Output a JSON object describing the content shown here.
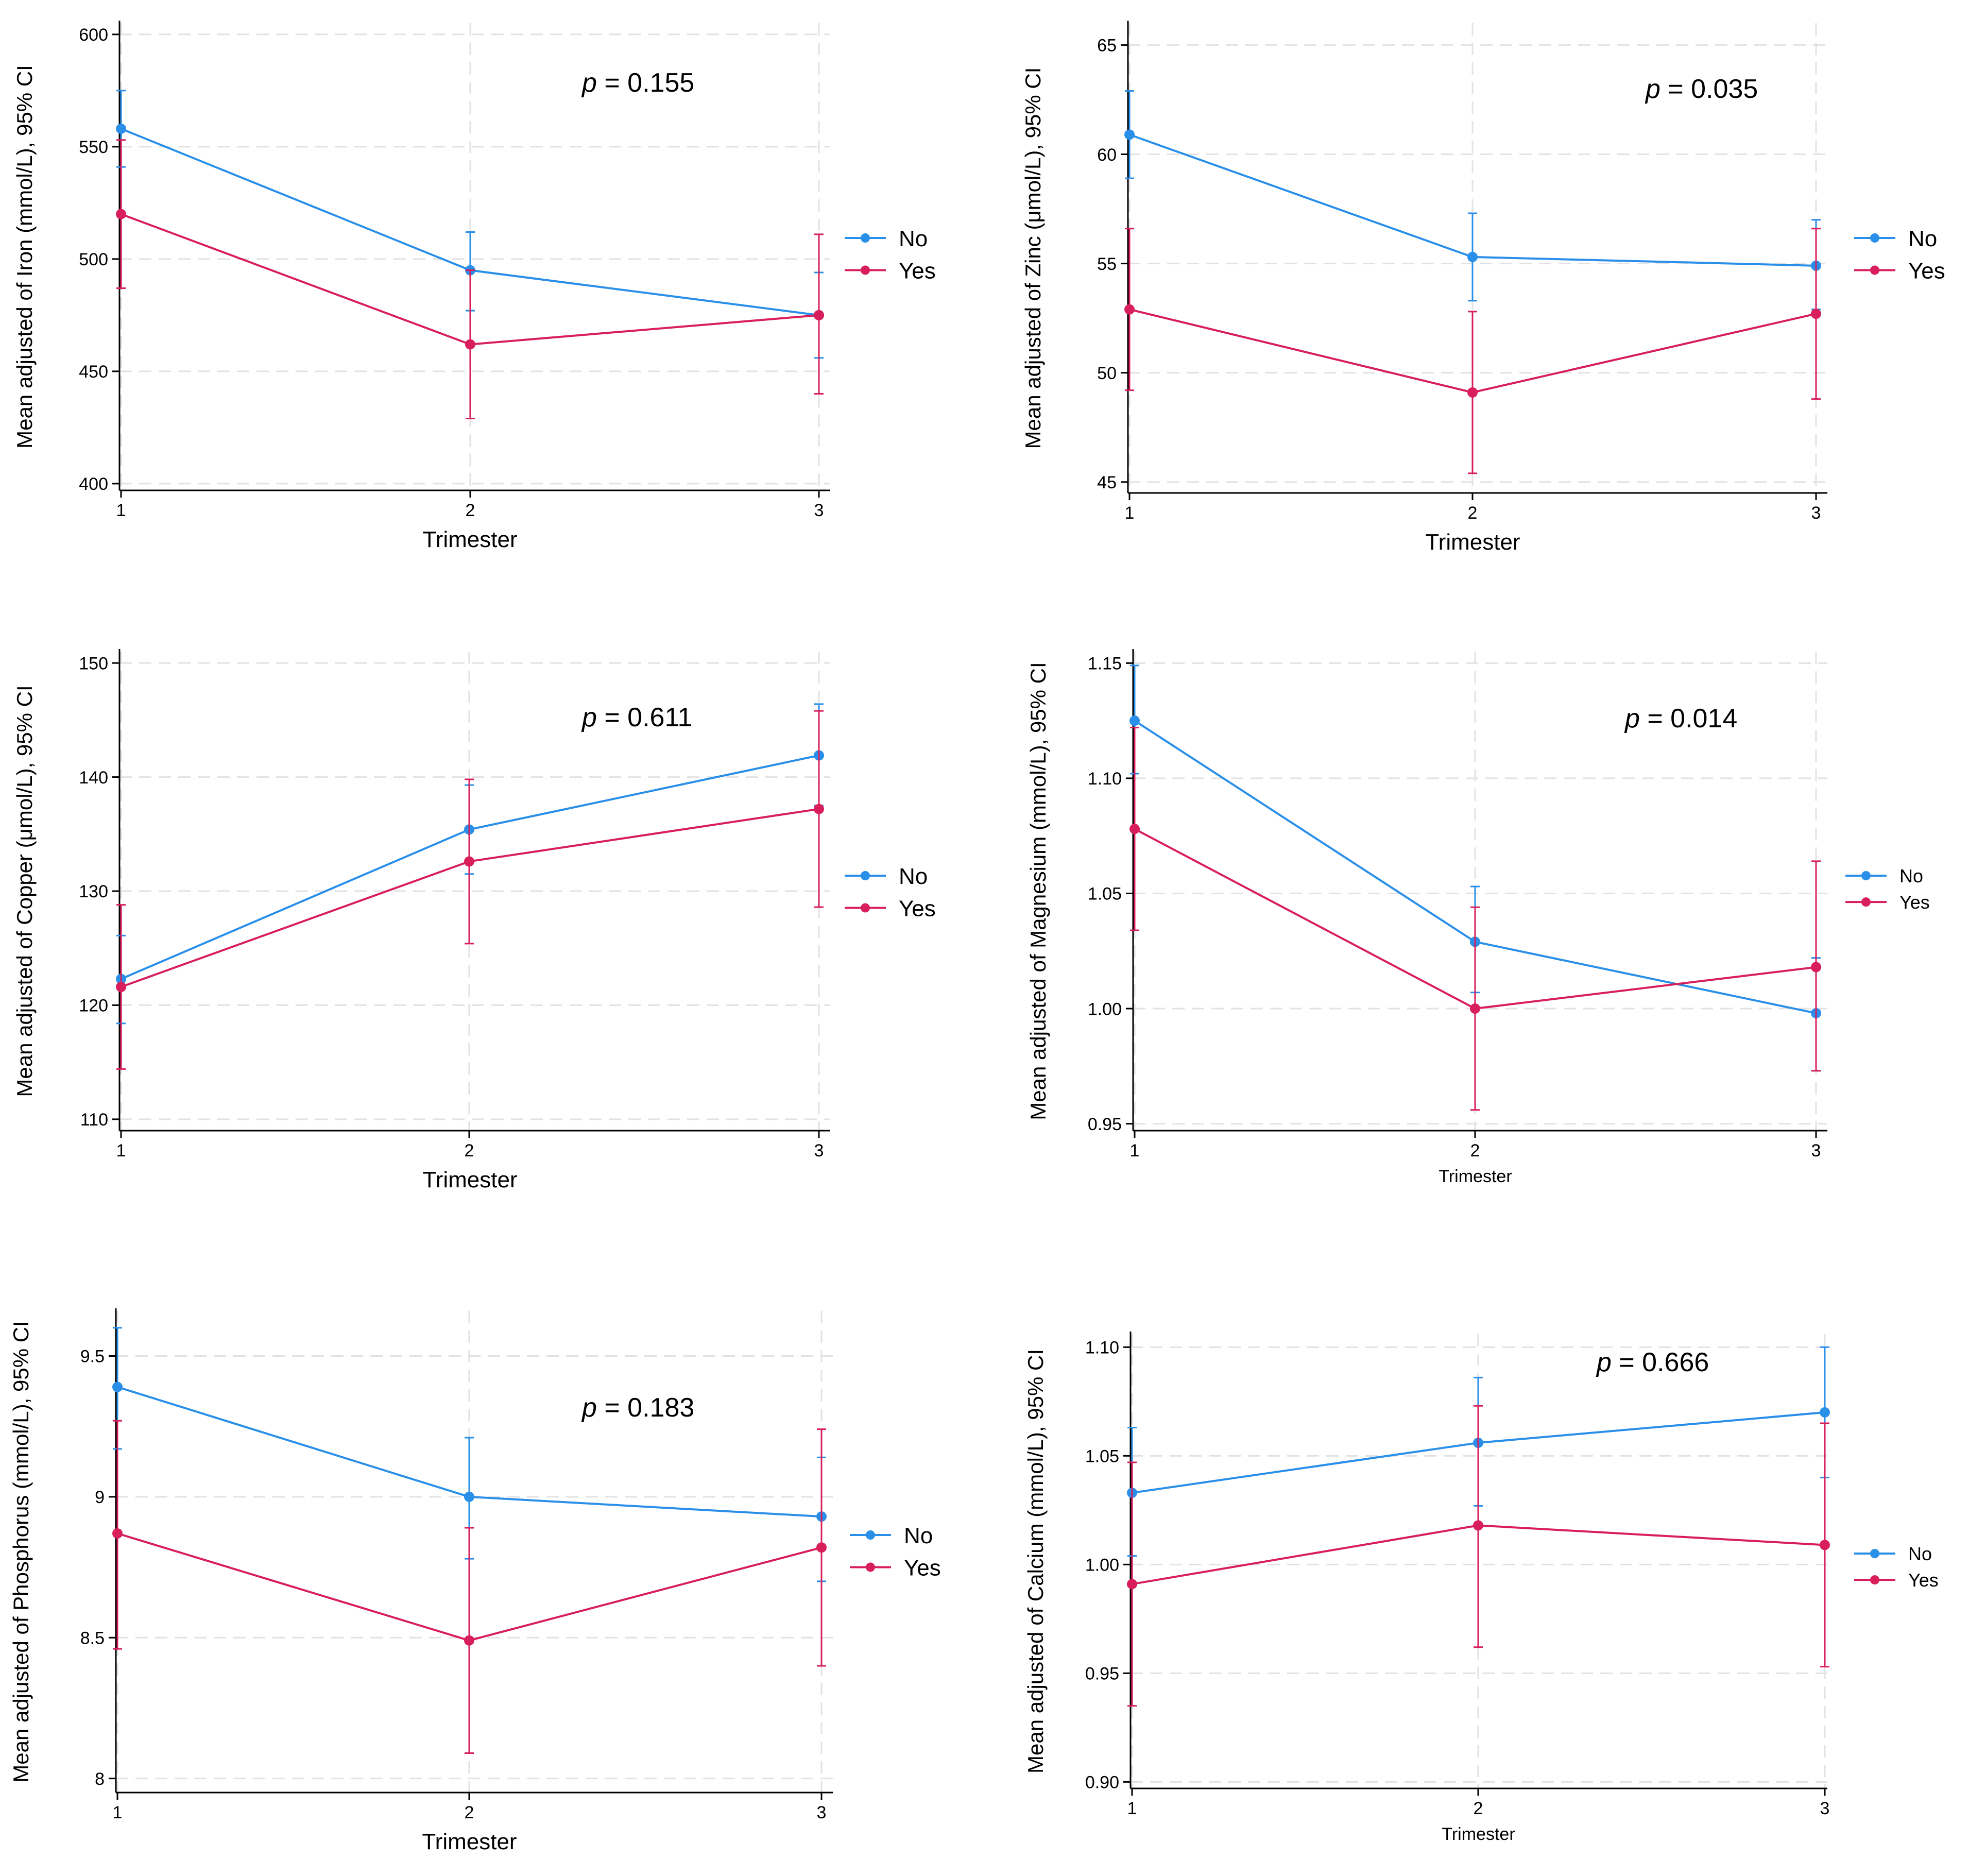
{
  "colors": {
    "no": "#2a8fe8",
    "yes": "#d81e5b",
    "grid": "#e2e2e2",
    "axis": "#000000"
  },
  "legend": {
    "no_label": "No",
    "yes_label": "Yes"
  },
  "chart_data": [
    {
      "id": "iron",
      "type": "line",
      "ylabel": "Mean adjusted of Iron (mmol/L), 95% CI",
      "xlabel": "Trimester",
      "ptext": {
        "p": "p",
        "rest": " = 0.155"
      },
      "x": [
        1,
        2,
        3
      ],
      "xticks": [
        "1",
        "2",
        "3"
      ],
      "ylim": [
        397,
        605
      ],
      "yticks": [
        400,
        450,
        500,
        550,
        600
      ],
      "ytick_labels": [
        "400",
        "450",
        "500",
        "550",
        "600"
      ],
      "series": [
        {
          "name": "No",
          "values": [
            558,
            495,
            475
          ],
          "lower": [
            541,
            477,
            456
          ],
          "upper": [
            575,
            512,
            494
          ]
        },
        {
          "name": "Yes",
          "values": [
            520,
            462,
            475
          ],
          "lower": [
            487,
            429,
            440
          ],
          "upper": [
            553,
            495,
            511
          ]
        }
      ]
    },
    {
      "id": "zinc",
      "type": "line",
      "ylabel": "Mean adjusted of Zinc (μmol/L), 95% CI",
      "xlabel": "Trimester",
      "ptext": {
        "p": "p",
        "rest": " = 0.035"
      },
      "x": [
        1,
        2,
        3
      ],
      "xticks": [
        "1",
        "2",
        "3"
      ],
      "ylim": [
        44.5,
        66
      ],
      "yticks": [
        45,
        50,
        55,
        60,
        65
      ],
      "ytick_labels": [
        "45",
        "50",
        "55",
        "60",
        "65"
      ],
      "series": [
        {
          "name": "No",
          "values": [
            60.9,
            55.3,
            54.9
          ],
          "lower": [
            58.9,
            53.3,
            52.9
          ],
          "upper": [
            62.9,
            57.3,
            57.0
          ]
        },
        {
          "name": "Yes",
          "values": [
            52.9,
            49.1,
            52.7
          ],
          "lower": [
            49.2,
            45.4,
            48.8
          ],
          "upper": [
            56.6,
            52.8,
            56.6
          ]
        }
      ]
    },
    {
      "id": "copper",
      "type": "line",
      "ylabel": "Mean adjusted of Copper (μmol/L), 95% CI",
      "xlabel": "Trimester",
      "ptext": {
        "p": "p",
        "rest": " = 0.611"
      },
      "x": [
        1,
        2,
        3
      ],
      "xticks": [
        "1",
        "2",
        "3"
      ],
      "ylim": [
        109,
        151
      ],
      "yticks": [
        110,
        120,
        130,
        140,
        150
      ],
      "ytick_labels": [
        "110",
        "120",
        "130",
        "140",
        "150"
      ],
      "series": [
        {
          "name": "No",
          "values": [
            122.3,
            135.4,
            141.9
          ],
          "lower": [
            118.4,
            131.5,
            137.5
          ],
          "upper": [
            126.1,
            139.3,
            146.4
          ]
        },
        {
          "name": "Yes",
          "values": [
            121.6,
            132.6,
            137.2
          ],
          "lower": [
            114.4,
            125.4,
            128.6
          ],
          "upper": [
            128.8,
            139.8,
            145.8
          ]
        }
      ]
    },
    {
      "id": "magnesium",
      "type": "line",
      "ylabel": "Mean adjusted of Magnesium (mmol/L), 95% CI",
      "xlabel": "Trimester",
      "ptext": {
        "p": "p",
        "rest": " = 0.014"
      },
      "x": [
        1,
        2,
        3
      ],
      "xticks": [
        "1",
        "2",
        "3"
      ],
      "ylim": [
        0.947,
        1.155
      ],
      "yticks": [
        0.95,
        1.0,
        1.05,
        1.1,
        1.15
      ],
      "ytick_labels": [
        "0.95",
        "1.00",
        "1.05",
        "1.10",
        "1.15"
      ],
      "series": [
        {
          "name": "No",
          "values": [
            1.125,
            1.029,
            0.998
          ],
          "lower": [
            1.102,
            1.007,
            0.973
          ],
          "upper": [
            1.149,
            1.053,
            1.022
          ]
        },
        {
          "name": "Yes",
          "values": [
            1.078,
            1.0,
            1.018
          ],
          "lower": [
            1.034,
            0.956,
            0.973
          ],
          "upper": [
            1.122,
            1.044,
            1.064
          ]
        }
      ]
    },
    {
      "id": "phosphorus",
      "type": "line",
      "ylabel": "Mean adjusted of Phosphorus (mmol/L), 95% CI",
      "xlabel": "Trimester",
      "ptext": {
        "p": "p",
        "rest": " = 0.183"
      },
      "x": [
        1,
        2,
        3
      ],
      "xticks": [
        "1",
        "2",
        "3"
      ],
      "ylim": [
        7.95,
        9.66
      ],
      "yticks": [
        8,
        8.5,
        9,
        9.5
      ],
      "ytick_labels": [
        "8",
        "8.5",
        "9",
        "9.5"
      ],
      "series": [
        {
          "name": "No",
          "values": [
            9.39,
            9.0,
            8.93
          ],
          "lower": [
            9.17,
            8.78,
            8.7
          ],
          "upper": [
            9.6,
            9.21,
            9.14
          ]
        },
        {
          "name": "Yes",
          "values": [
            8.87,
            8.49,
            8.82
          ],
          "lower": [
            8.46,
            8.09,
            8.4
          ],
          "upper": [
            9.27,
            8.89,
            9.24
          ]
        }
      ]
    },
    {
      "id": "calcium",
      "type": "line",
      "ylabel": "Mean adjusted of Calcium (mmol/L), 95% CI",
      "xlabel": "Trimester",
      "ptext": {
        "p": "p",
        "rest": " = 0.666"
      },
      "x": [
        1,
        2,
        3
      ],
      "xticks": [
        "1",
        "2",
        "3"
      ],
      "ylim": [
        0.897,
        1.106
      ],
      "yticks": [
        0.9,
        0.95,
        1.0,
        1.05,
        1.1
      ],
      "ytick_labels": [
        "0.90",
        "0.95",
        "1.00",
        "1.05",
        "1.10"
      ],
      "series": [
        {
          "name": "No",
          "values": [
            1.033,
            1.056,
            1.07
          ],
          "lower": [
            1.004,
            1.027,
            1.04
          ],
          "upper": [
            1.063,
            1.086,
            1.1
          ]
        },
        {
          "name": "Yes",
          "values": [
            0.991,
            1.018,
            1.009
          ],
          "lower": [
            0.935,
            0.962,
            0.953
          ],
          "upper": [
            1.047,
            1.073,
            1.065
          ]
        }
      ]
    }
  ]
}
